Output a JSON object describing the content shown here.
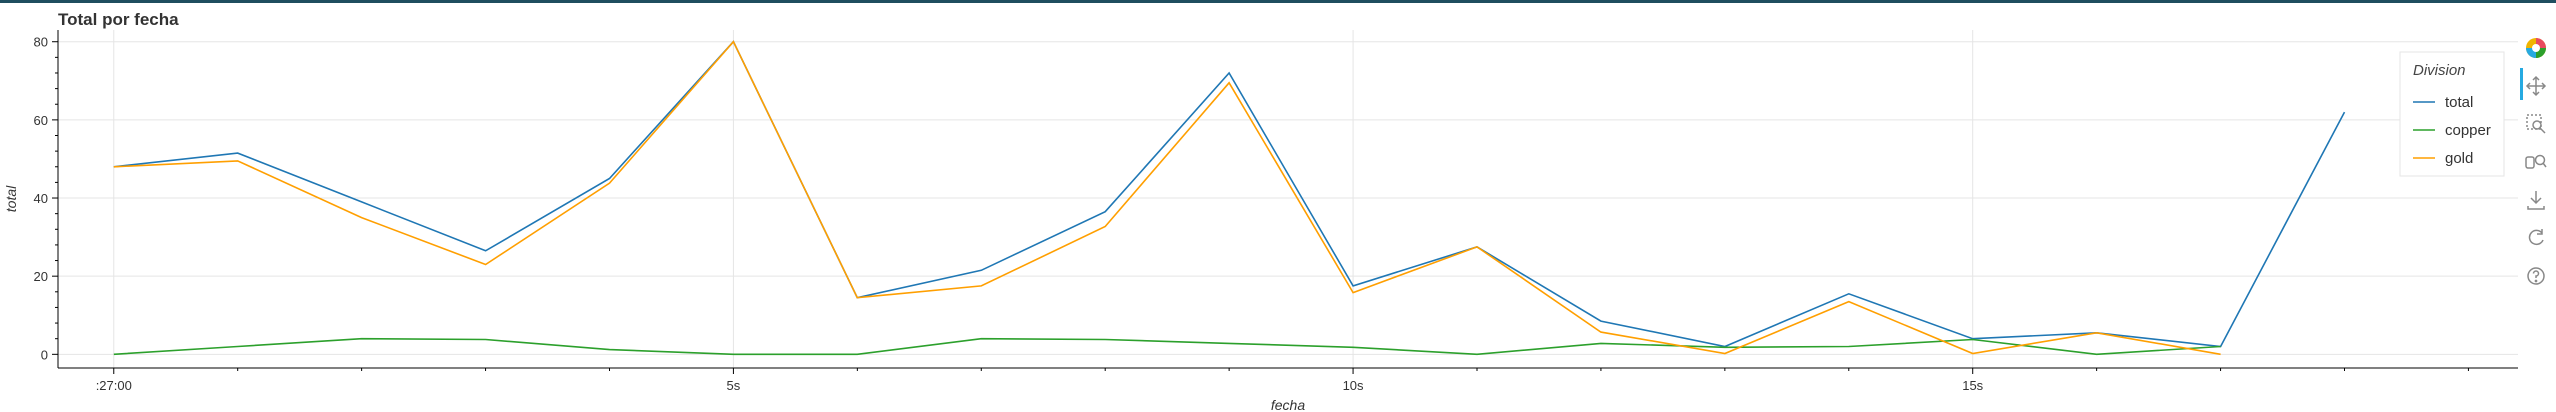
{
  "title": "Total por fecha",
  "toolbar": {
    "tools": [
      "bokeh-logo-icon",
      "pan-icon",
      "box-zoom-icon",
      "wheel-zoom-icon",
      "save-icon",
      "reset-icon",
      "help-icon"
    ]
  },
  "chart_data": {
    "type": "line",
    "title": "Total por fecha",
    "xlabel": "fecha",
    "ylabel": "total",
    "xlim": [
      -0.45,
      19.4
    ],
    "ylim": [
      -3.5,
      83
    ],
    "x_ticks": [
      0,
      5,
      10,
      15
    ],
    "x_tick_labels": [
      ":27:00",
      "5s",
      "10s",
      "15s"
    ],
    "y_ticks": [
      0,
      20,
      40,
      60,
      80
    ],
    "y_tick_labels": [
      "0",
      "20",
      "40",
      "60",
      "80"
    ],
    "grid": true,
    "legend_title": "Division",
    "legend_position": "top-right",
    "x": [
      0,
      1,
      2,
      3,
      4,
      5,
      6,
      7,
      8,
      9,
      10,
      11,
      12,
      13,
      14,
      15,
      16,
      17,
      18
    ],
    "series": [
      {
        "name": "total",
        "color": "#1f77b4",
        "values": [
          48,
          51.5,
          39,
          26.5,
          45,
          80,
          14.5,
          21.5,
          36.5,
          72,
          17.5,
          27.5,
          8.5,
          2,
          15.5,
          4,
          5.5,
          2,
          62
        ]
      },
      {
        "name": "copper",
        "color": "#2ca02c",
        "values": [
          0,
          2,
          4,
          3.8,
          1.2,
          0,
          0,
          4,
          3.8,
          2.8,
          1.8,
          0,
          2.8,
          1.8,
          2,
          3.8,
          0,
          2,
          null
        ]
      },
      {
        "name": "gold",
        "color": "#ff9f00",
        "values": [
          48,
          49.5,
          35,
          23,
          43.8,
          80,
          14.5,
          17.5,
          32.7,
          69.5,
          15.8,
          27.5,
          5.7,
          0.2,
          13.5,
          0.2,
          5.5,
          0,
          null
        ]
      }
    ]
  }
}
